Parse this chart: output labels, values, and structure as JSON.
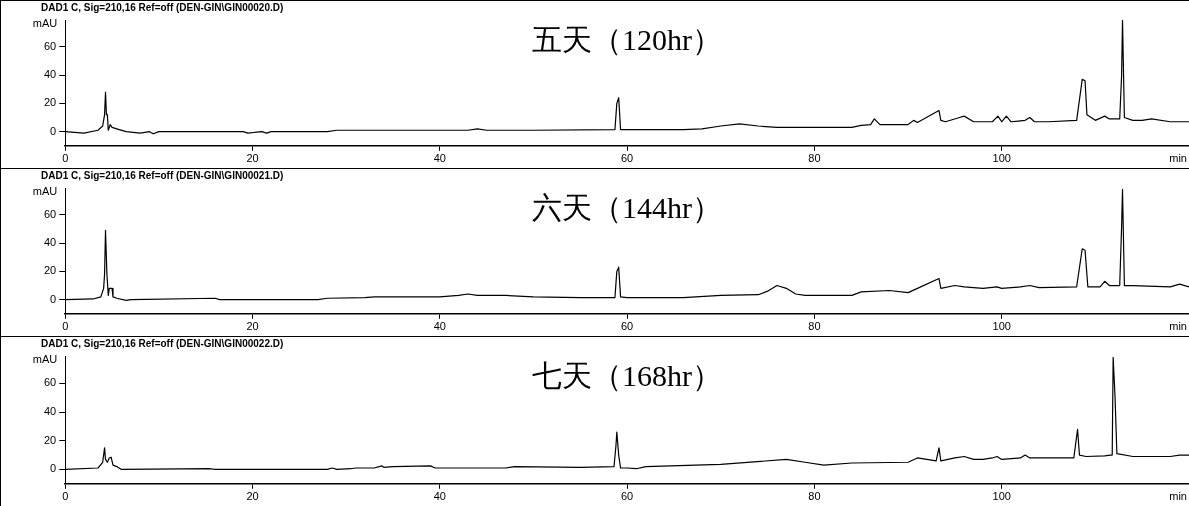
{
  "chart_data": [
    {
      "type": "line",
      "title": "DAD1 C, Sig=210,16 Ref=off (DEN-GIN\\GIN00020.D)",
      "xlabel": "min",
      "ylabel": "mAU",
      "annotations": [
        "五天（120hr）"
      ],
      "color": "#000000",
      "xlim": [
        0,
        120
      ],
      "xticks": [
        0,
        20,
        40,
        60,
        80,
        100
      ],
      "ylim": [
        -10,
        79
      ],
      "yticks": [
        0,
        20,
        40,
        60
      ],
      "x": [
        0,
        2,
        3.5,
        4,
        4.2,
        4.3,
        4.4,
        4.5,
        4.6,
        4.8,
        5,
        5.5,
        6.5,
        8,
        9,
        9.4,
        10,
        19,
        19.5,
        21,
        21.5,
        22,
        28,
        29,
        30,
        35,
        43,
        44,
        45,
        50,
        58.7,
        58.9,
        59.1,
        59.3,
        60,
        66,
        68,
        70,
        72,
        74,
        76,
        80,
        84,
        85,
        86,
        86.4,
        87,
        88,
        90,
        90.6,
        91,
        93.3,
        93.5,
        94,
        95.5,
        96,
        97,
        99,
        99.6,
        100,
        100.5,
        101,
        102.5,
        103,
        103.5,
        105,
        108,
        108.6,
        108.9,
        109.1,
        110,
        111,
        111.5,
        112.6,
        112.8,
        112.9,
        113.1,
        114,
        115,
        116,
        118,
        120
      ],
      "values": [
        0,
        -1,
        1,
        4,
        12,
        28,
        12,
        12,
        1,
        5,
        3,
        2,
        0,
        -1,
        0,
        -1.5,
        0,
        0,
        -1,
        0,
        -1,
        0,
        0,
        1,
        1,
        1,
        1,
        2,
        1,
        1,
        1.5,
        20,
        24,
        1.5,
        1.5,
        1.5,
        2,
        4,
        5.5,
        4,
        3,
        3,
        3,
        4.5,
        5,
        9,
        5,
        5,
        5,
        8,
        6.5,
        15,
        8,
        7,
        10,
        11,
        7,
        7,
        11,
        7,
        11,
        7,
        8,
        10,
        7,
        7,
        8,
        37,
        36,
        12,
        8,
        11,
        9,
        9,
        39,
        79,
        10,
        8,
        8,
        9,
        7,
        7
      ]
    },
    {
      "type": "line",
      "title": "DAD1 C, Sig=210,16 Ref=off (DEN-GIN\\GIN00021.D)",
      "xlabel": "min",
      "ylabel": "mAU",
      "annotations": [
        "六天（144hr）"
      ],
      "color": "#000000",
      "xlim": [
        0,
        120
      ],
      "xticks": [
        0,
        20,
        40,
        60,
        80,
        100
      ],
      "ylim": [
        -10,
        79
      ],
      "yticks": [
        0,
        20,
        40,
        60
      ],
      "x": [
        0,
        3,
        3.8,
        4.1,
        4.2,
        4.3,
        4.45,
        4.6,
        4.7,
        5,
        5.1,
        5.5,
        6.5,
        7,
        16,
        16.5,
        20,
        27,
        28,
        32,
        33,
        40,
        42,
        43,
        44,
        47,
        50,
        55,
        58.7,
        58.9,
        59.1,
        59.3,
        60,
        66,
        70,
        74,
        75,
        76,
        77,
        78,
        79,
        84,
        85,
        88,
        90,
        91,
        93.3,
        93.5,
        95,
        96,
        98,
        99.5,
        100,
        102,
        103,
        104,
        108,
        108.6,
        108.9,
        109.2,
        110.5,
        111,
        111.5,
        112.6,
        112.8,
        112.9,
        113.1,
        114,
        118,
        119,
        120
      ],
      "values": [
        0,
        0.5,
        2,
        8,
        18,
        49,
        18,
        3,
        8,
        8,
        2,
        1,
        -0.5,
        0,
        1,
        0,
        0,
        0,
        1,
        1.5,
        2,
        2,
        3,
        4,
        3,
        3,
        2,
        1.5,
        1.5,
        20,
        23,
        2,
        1.5,
        1.5,
        3,
        3.5,
        6,
        10,
        8,
        4,
        3,
        3,
        5.5,
        6.5,
        5,
        8,
        15,
        8,
        10,
        9,
        8,
        9,
        8,
        9,
        10,
        8.5,
        9,
        36,
        35,
        9,
        9,
        13,
        10,
        10,
        51,
        78,
        10,
        10,
        9,
        11,
        9
      ]
    },
    {
      "type": "line",
      "title": "DAD1 C, Sig=210,16 Ref=off (DEN-GIN\\GIN00022.D)",
      "xlabel": "min",
      "ylabel": "mAU",
      "annotations": [
        "七天（168hr）"
      ],
      "color": "#000000",
      "xlim": [
        0,
        120
      ],
      "xticks": [
        0,
        20,
        40,
        60,
        80,
        100
      ],
      "ylim": [
        -10,
        79
      ],
      "yticks": [
        0,
        20,
        40,
        60
      ],
      "x": [
        0,
        3.5,
        4,
        4.2,
        4.3,
        4.5,
        4.7,
        4.9,
        5.1,
        5.5,
        6,
        15.5,
        16,
        28,
        28.5,
        29,
        30.5,
        31,
        33,
        33.8,
        34,
        35,
        39,
        39.5,
        47,
        48,
        55,
        58.6,
        58.8,
        58.9,
        59.1,
        59.3,
        60,
        61,
        62,
        70,
        77,
        79,
        81,
        84,
        90,
        91,
        93,
        93.3,
        93.5,
        95,
        96,
        97,
        98,
        99,
        99.5,
        100,
        102,
        102.5,
        103,
        105,
        107.7,
        107.9,
        108.1,
        108.3,
        109,
        111,
        111.6,
        111.8,
        111.9,
        112.1,
        112.3,
        114,
        118,
        119,
        120
      ],
      "values": [
        0,
        1,
        5,
        15,
        7,
        5,
        8,
        8.5,
        3,
        2,
        0,
        0.5,
        0,
        0,
        1,
        0,
        0.5,
        1,
        1,
        2.5,
        1.5,
        2,
        2.5,
        1,
        1,
        2,
        1.5,
        2,
        16,
        26,
        10,
        1,
        1,
        0.5,
        2,
        3.5,
        7,
        5,
        3,
        4.5,
        5,
        8,
        6,
        15,
        6,
        8,
        9,
        7,
        7,
        8,
        9,
        7,
        8,
        10,
        8,
        8,
        8,
        18,
        28,
        10,
        9,
        9.5,
        10,
        10,
        78,
        51,
        11,
        9,
        9,
        10,
        10
      ]
    }
  ]
}
